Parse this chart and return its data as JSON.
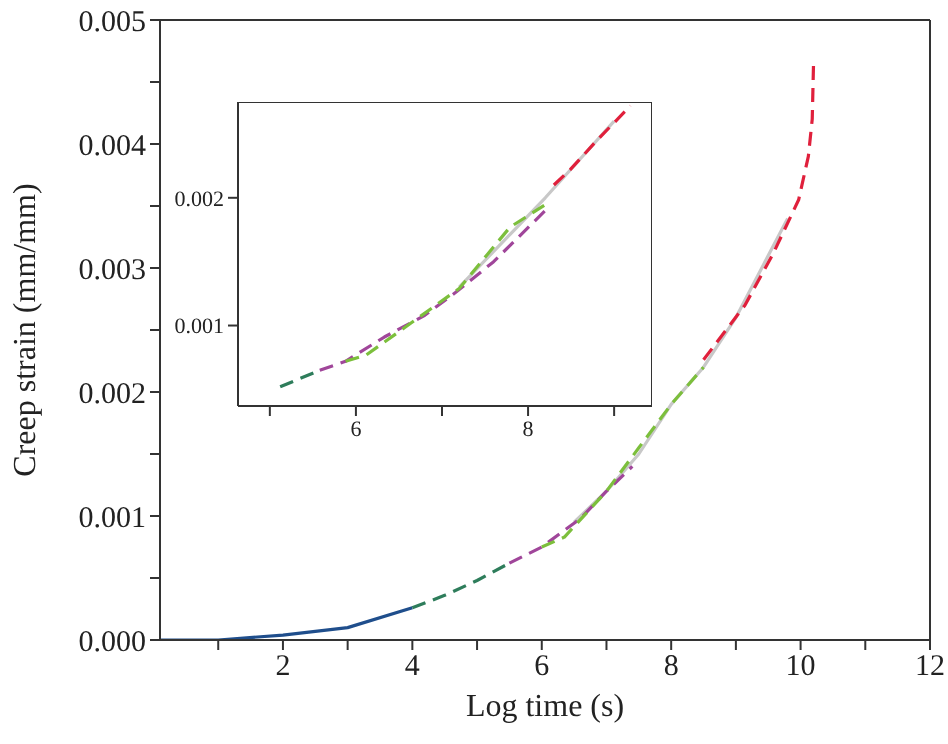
{
  "chart_data": [
    {
      "type": "line",
      "xlabel": "Log time (s)",
      "ylabel": "Creep strain (mm/mm)",
      "xlim": [
        0.1,
        12
      ],
      "ylim": [
        0,
        0.005
      ],
      "xticks": [
        {
          "value": 1,
          "label": null
        },
        2,
        {
          "value": 3,
          "label": null
        },
        4,
        {
          "value": 5,
          "label": null
        },
        6,
        {
          "value": 7,
          "label": null
        },
        8,
        {
          "value": 9,
          "label": null
        },
        10,
        {
          "value": 11,
          "label": null
        },
        12
      ],
      "yticks": [
        {
          "value": 0,
          "label": "0.000"
        },
        {
          "value": 0.0005,
          "label": null
        },
        {
          "value": 0.001,
          "label": "0.001"
        },
        {
          "value": 0.0015,
          "label": null
        },
        {
          "value": 0.002,
          "label": "0.002"
        },
        {
          "value": 0.0025,
          "label": null
        },
        {
          "value": 0.003,
          "label": "0.003"
        },
        {
          "value": 0.0035,
          "label": null
        },
        {
          "value": 0.004,
          "label": "0.004"
        },
        {
          "value": 0.0045,
          "label": null
        },
        {
          "value": 0.005,
          "label": "0.005"
        }
      ],
      "marker": "none",
      "series": [
        {
          "color": "#c8c8c8",
          "line_style": "solid",
          "x": [
            6.5,
            7,
            7.5,
            8,
            8.5,
            9,
            9.5,
            9.8
          ],
          "values": [
            0.00095,
            0.0012,
            0.0015,
            0.0019,
            0.0022,
            0.0026,
            0.0031,
            0.0034
          ]
        },
        {
          "color": "#1f4e8c",
          "line_style": "solid",
          "x": [
            0.1,
            1,
            2,
            3,
            4
          ],
          "values": [
            0,
            0,
            4e-05,
            0.0001,
            0.00026
          ]
        },
        {
          "color": "#2e7d5b",
          "line_style": "dashed",
          "x": [
            4,
            4.5,
            5,
            5.5
          ],
          "values": [
            0.00026,
            0.00036,
            0.00048,
            0.00062
          ]
        },
        {
          "color": "#a0469a",
          "line_style": "dashed",
          "x": [
            5.5,
            6,
            6.6,
            7,
            7.4
          ],
          "values": [
            0.00062,
            0.00075,
            0.00098,
            0.0012,
            0.0014
          ]
        },
        {
          "color": "#7cbf3c",
          "line_style": "dashed",
          "x": [
            6,
            6.35,
            7,
            7.5,
            8,
            8.5
          ],
          "values": [
            0.00075,
            0.00083,
            0.0012,
            0.00155,
            0.0019,
            0.0022
          ]
        },
        {
          "color": "#e0203c",
          "line_style": "dashed",
          "x": [
            8.5,
            9.14,
            9.57,
            9.97,
            10.12,
            10.18,
            10.2
          ],
          "values": [
            0.00226,
            0.0027,
            0.00311,
            0.00355,
            0.0039,
            0.0042,
            0.00465
          ]
        }
      ]
    },
    {
      "type": "line",
      "xlim": [
        4.63,
        9.44
      ],
      "ylim": [
        0.00037,
        0.00275
      ],
      "xticks": [
        {
          "value": 5,
          "label": null
        },
        6,
        {
          "value": 7,
          "label": null
        },
        8,
        {
          "value": 9,
          "label": null
        }
      ],
      "yticks": [
        0.001,
        0.002
      ],
      "marker": "none",
      "series": [
        {
          "color": "#c8c8c8",
          "line_style": "solid",
          "x": [
            7.2,
            7.8,
            8.2,
            8.6,
            9.0
          ],
          "values": [
            0.0013,
            0.00172,
            0.002,
            0.0023,
            0.0026
          ]
        },
        {
          "color": "#2e7d5b",
          "line_style": "dashed",
          "x": [
            5.12,
            5.58
          ],
          "values": [
            0.00052,
            0.00065
          ]
        },
        {
          "color": "#a0469a",
          "line_style": "dashed",
          "x": [
            5.58,
            5.88,
            6.33,
            6.8,
            7.16,
            7.6,
            8.2
          ],
          "values": [
            0.00065,
            0.00072,
            0.00091,
            0.00108,
            0.00126,
            0.0015,
            0.0019
          ]
        },
        {
          "color": "#7cbf3c",
          "line_style": "dashed",
          "x": [
            5.88,
            6.12,
            6.6,
            7.2,
            7.79,
            8.21
          ],
          "values": [
            0.00072,
            0.00077,
            0.001,
            0.00129,
            0.00177,
            0.00195
          ]
        },
        {
          "color": "#e0203c",
          "line_style": "dashed",
          "x": [
            8.3,
            8.49,
            8.8,
            9.19
          ],
          "values": [
            0.0021,
            0.00222,
            0.00245,
            0.00272
          ]
        }
      ]
    }
  ]
}
